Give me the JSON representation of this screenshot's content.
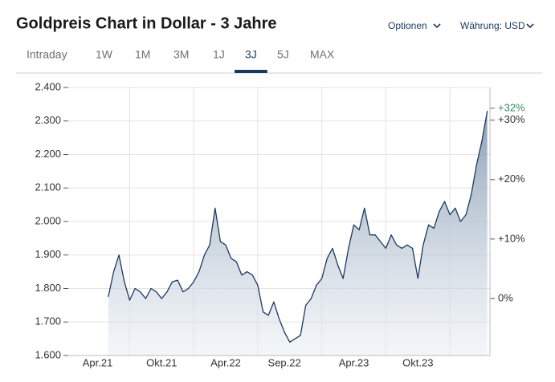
{
  "header": {
    "options": "Optionen",
    "currency": "Währung: USD"
  },
  "tabs": {
    "items": [
      "Intraday",
      "1W",
      "1M",
      "3M",
      "1J",
      "3J",
      "5J",
      "MAX"
    ],
    "active": 5
  },
  "chart_data": {
    "type": "line",
    "title": "Goldpreis Chart in Dollar - 3 Jahre",
    "categories": [
      null,
      null,
      null,
      null,
      null,
      "Apr.21",
      null,
      null,
      null,
      null,
      null,
      null,
      null,
      null,
      null,
      null,
      null,
      "Okt.21",
      null,
      null,
      null,
      null,
      null,
      null,
      null,
      null,
      null,
      null,
      null,
      "Apr.22",
      null,
      null,
      null,
      null,
      null,
      null,
      null,
      null,
      null,
      null,
      "Sep.22",
      null,
      null,
      null,
      null,
      null,
      null,
      null,
      null,
      null,
      null,
      null,
      null,
      "Apr.23",
      null,
      null,
      null,
      null,
      null,
      null,
      null,
      null,
      null,
      null,
      null,
      "Okt.23",
      null,
      null,
      null,
      null,
      null,
      null,
      null,
      null,
      null,
      null,
      null,
      null,
      null
    ],
    "values": [
      null,
      null,
      null,
      null,
      null,
      null,
      null,
      1775,
      1850,
      1900,
      1820,
      1765,
      1800,
      1790,
      1770,
      1800,
      1790,
      1770,
      1790,
      1820,
      1825,
      1790,
      1800,
      1820,
      1850,
      1900,
      1930,
      2040,
      1940,
      1930,
      1890,
      1880,
      1840,
      1850,
      1840,
      1810,
      1730,
      1720,
      1760,
      1710,
      1670,
      1640,
      1650,
      1660,
      1750,
      1770,
      1810,
      1830,
      1890,
      1920,
      1870,
      1830,
      1920,
      1990,
      1975,
      2040,
      1960,
      1960,
      1940,
      1920,
      1960,
      1930,
      1920,
      1930,
      1920,
      1830,
      1930,
      1990,
      1980,
      2030,
      2060,
      2020,
      2040,
      2000,
      2020,
      2080,
      2170,
      2240,
      2330
    ],
    "color": "#1c3a5e",
    "ylim": [
      1600,
      2400
    ],
    "yticks": [
      {
        "value": 1600,
        "label": "1.600"
      },
      {
        "value": 1700,
        "label": "1.700"
      },
      {
        "value": 1800,
        "label": "1.800"
      },
      {
        "value": 1900,
        "label": "1.900"
      },
      {
        "value": 2000,
        "label": "2.000"
      },
      {
        "value": 2100,
        "label": "2.100"
      },
      {
        "value": 2200,
        "label": "2.200"
      },
      {
        "value": 2300,
        "label": "2.300"
      },
      {
        "value": 2400,
        "label": "2.400"
      }
    ],
    "y2lim": [
      -9.6,
      35.5
    ],
    "y2ticks": [
      {
        "value": 0,
        "label": "0%"
      },
      {
        "value": 10,
        "label": "+10%"
      },
      {
        "value": 20,
        "label": "+20%"
      },
      {
        "value": 30,
        "label": "+30%"
      }
    ],
    "current_change": {
      "value": 32,
      "label": "+32%",
      "color": "#3a8a62"
    },
    "grid": true
  }
}
